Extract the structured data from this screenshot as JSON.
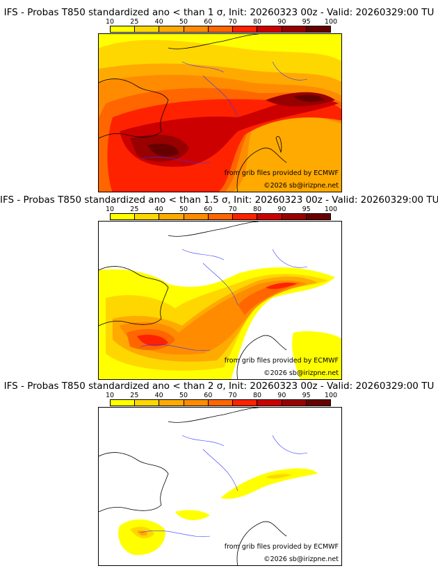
{
  "colorbar": {
    "ticks": [
      "10",
      "25",
      "40",
      "50",
      "60",
      "70",
      "80",
      "90",
      "95",
      "100"
    ],
    "colors": [
      "#ffff00",
      "#ffd700",
      "#ffaa00",
      "#ff8c00",
      "#ff6600",
      "#ff2200",
      "#cc0000",
      "#990000",
      "#660000"
    ]
  },
  "panels": [
    {
      "title": "IFS - Probas T850  standardized ano < than 1 σ, Init: 20260323 00z - Valid: 20260329:00 TU",
      "source": "from grib files provided by ECMWF",
      "copyright": "©2026 sb@irizpne.net"
    },
    {
      "title": "IFS - Probas T850  standardized ano < than 1.5 σ, Init: 20260323 00z - Valid: 20260329:00 TU",
      "source": "from grib files provided by ECMWF",
      "copyright": "©2026 sb@irizpne.net"
    },
    {
      "title": "IFS - Probas T850  standardized ano < than 2 σ, Init: 20260323 00z - Valid: 20260329:00 TU",
      "source": "from grib files provided by ECMWF",
      "copyright": "©2026 sb@irizpne.net"
    }
  ]
}
